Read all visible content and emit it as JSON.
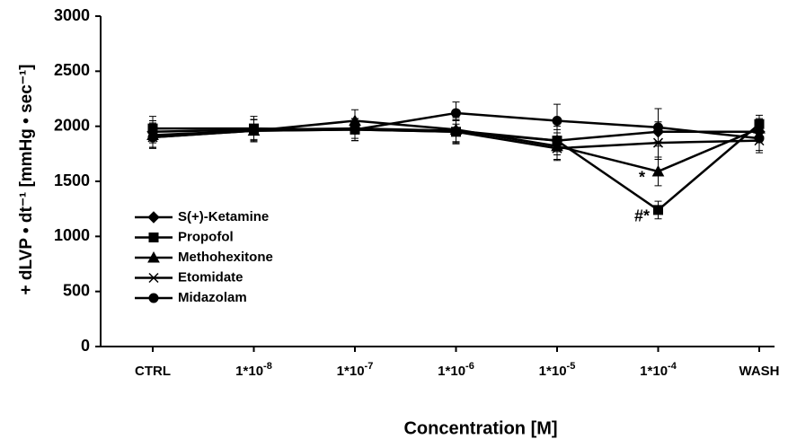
{
  "chart_data": {
    "type": "line",
    "xlabel": "Concentration [M]",
    "ylabel": "+ dLVP • dt⁻¹ [mmHg • sec⁻¹]",
    "categories": [
      "CTRL",
      "1*10-8",
      "1*10-7",
      "1*10-6",
      "1*10-5",
      "1*10-4",
      "WASH"
    ],
    "ylim": [
      0,
      3000
    ],
    "yticks": [
      0,
      500,
      1000,
      1500,
      2000,
      2500,
      3000
    ],
    "grid": false,
    "legend": "left",
    "series": [
      {
        "name": "S(+)-Ketamine",
        "color": "#000000",
        "marker": "diamond",
        "values": [
          1950,
          1970,
          1980,
          1960,
          1870,
          1950,
          1950
        ],
        "errors": [
          100,
          90,
          90,
          100,
          100,
          90,
          90
        ]
      },
      {
        "name": "Propofol",
        "color": "#000000",
        "marker": "square",
        "values": [
          1980,
          1980,
          1970,
          1950,
          1870,
          1240,
          2020
        ],
        "errors": [
          110,
          110,
          100,
          110,
          130,
          80,
          80
        ]
      },
      {
        "name": "Methohexitone",
        "color": "#000000",
        "marker": "triangle",
        "values": [
          1920,
          1960,
          2050,
          1970,
          1820,
          1590,
          1980
        ],
        "errors": [
          110,
          100,
          100,
          110,
          120,
          130,
          90
        ]
      },
      {
        "name": "Etomidate",
        "color": "#000000",
        "marker": "x",
        "values": [
          1900,
          1960,
          1970,
          1950,
          1800,
          1850,
          1870
        ],
        "errors": [
          100,
          100,
          100,
          100,
          110,
          150,
          110
        ]
      },
      {
        "name": "Midazolam",
        "color": "#000000",
        "marker": "circle",
        "values": [
          1900,
          1960,
          1970,
          2120,
          2050,
          1990,
          1890
        ],
        "errors": [
          100,
          100,
          100,
          100,
          150,
          170,
          110
        ]
      }
    ],
    "annotations": [
      {
        "text": "*",
        "category": 5,
        "value": 1590
      },
      {
        "text": "#*",
        "category": 5,
        "value": 1240
      }
    ]
  }
}
